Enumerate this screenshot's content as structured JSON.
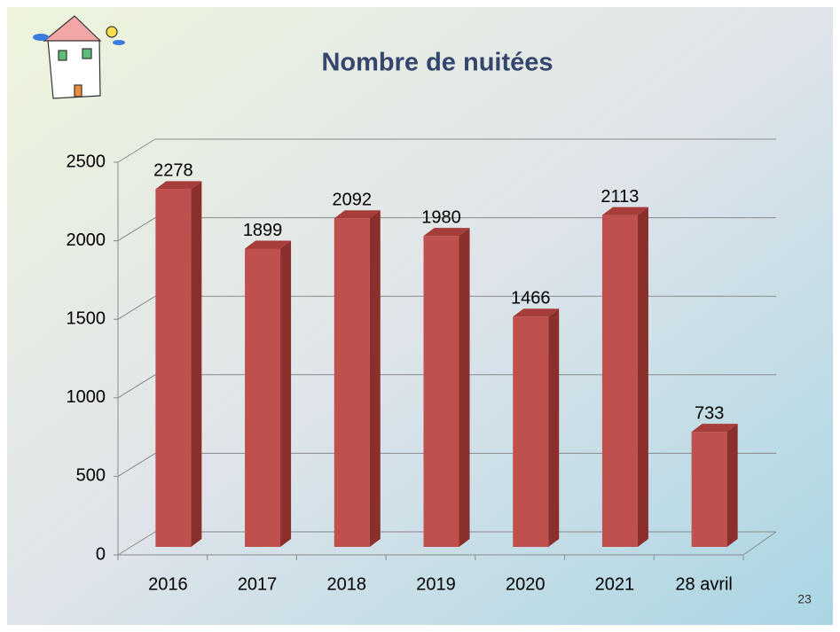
{
  "chart_data": {
    "type": "bar",
    "title": "Nombre de nuitées",
    "categories": [
      "2016",
      "2017",
      "2018",
      "2019",
      "2020",
      "2021",
      "28 avril"
    ],
    "values": [
      2278,
      1899,
      2092,
      1980,
      1466,
      2113,
      733
    ],
    "color": "#c0504d",
    "ylim": [
      0,
      2500
    ],
    "yticks": [
      0,
      500,
      1000,
      1500,
      2000,
      2500
    ],
    "grid": true
  },
  "slide_number": "23"
}
